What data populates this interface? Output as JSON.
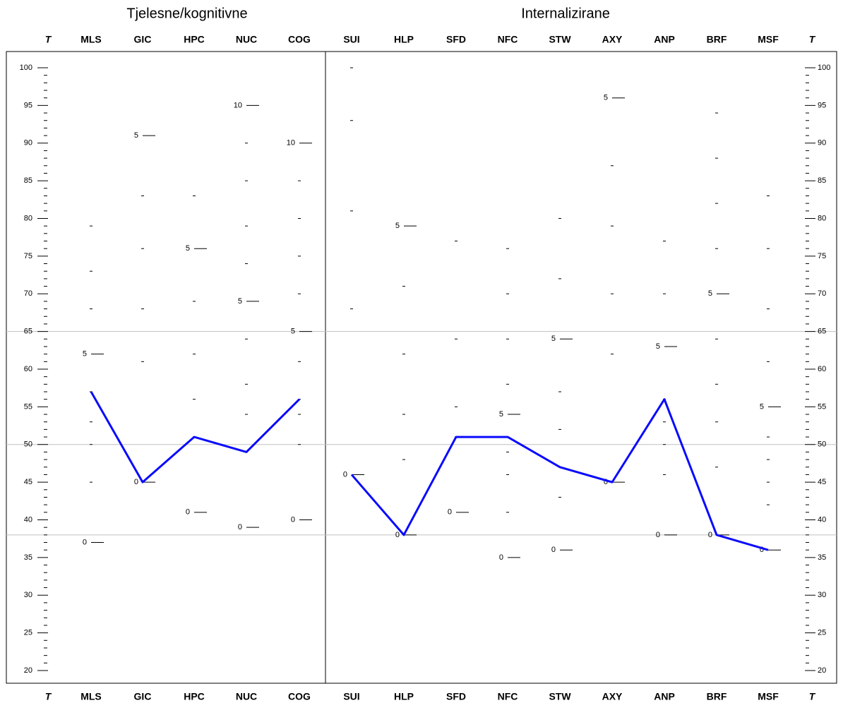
{
  "chart_data": {
    "type": "profile",
    "axis_label": "T",
    "ylim": [
      20,
      100
    ],
    "yticks": [
      20,
      25,
      30,
      35,
      40,
      45,
      50,
      55,
      60,
      65,
      70,
      75,
      80,
      85,
      90,
      95,
      100
    ],
    "yminorticks": [
      21,
      22,
      23,
      24,
      26,
      27,
      28,
      29,
      31,
      32,
      33,
      34,
      36,
      37,
      38,
      39,
      41,
      42,
      43,
      44,
      46,
      47,
      48,
      49,
      51,
      52,
      53,
      54,
      56,
      57,
      58,
      59,
      61,
      62,
      63,
      64,
      66,
      67,
      68,
      69,
      71,
      72,
      73,
      74,
      76,
      77,
      78,
      79,
      81,
      82,
      83,
      84,
      86,
      87,
      88,
      89,
      91,
      92,
      93,
      94,
      96,
      97,
      98,
      99
    ],
    "reference_lines": [
      65,
      50,
      38
    ],
    "color": "#0a0aff",
    "groups": [
      {
        "title": "Tjelesne/kognitivne",
        "categories": [
          "MLS",
          "GIC",
          "HPC",
          "NUC",
          "COG"
        ],
        "values": [
          57,
          45,
          51,
          49,
          56
        ],
        "raw_ticks": [
          [
            {
              "value": 37,
              "label": "0"
            },
            45,
            50,
            53,
            57,
            {
              "value": 62,
              "label": "5"
            },
            68,
            73,
            79
          ],
          [
            {
              "value": 45,
              "label": "0"
            },
            61,
            68,
            76,
            83,
            {
              "value": 91,
              "label": "5"
            }
          ],
          [
            {
              "value": 41,
              "label": "0"
            },
            51,
            56,
            62,
            69,
            {
              "value": 76,
              "label": "5"
            },
            83
          ],
          [
            {
              "value": 39,
              "label": "0"
            },
            49,
            54,
            58,
            64,
            {
              "value": 69,
              "label": "5"
            },
            74,
            79,
            85,
            90,
            {
              "value": 95,
              "label": "10"
            }
          ],
          [
            {
              "value": 40,
              "label": "0"
            },
            50,
            54,
            56,
            61,
            {
              "value": 65,
              "label": "5"
            },
            70,
            75,
            80,
            85,
            {
              "value": 90,
              "label": "10"
            }
          ]
        ]
      },
      {
        "title": "Internalizirane",
        "categories": [
          "SUI",
          "HLP",
          "SFD",
          "NFC",
          "STW",
          "AXY",
          "ANP",
          "BRF",
          "MSF"
        ],
        "values": [
          46,
          38,
          51,
          51,
          47,
          45,
          56,
          38,
          36
        ],
        "raw_ticks": [
          [
            {
              "value": 46,
              "label": "0"
            },
            68,
            81,
            93,
            100
          ],
          [
            {
              "value": 38,
              "label": "0"
            },
            48,
            54,
            62,
            71,
            {
              "value": 79,
              "label": "5"
            }
          ],
          [
            {
              "value": 41,
              "label": "0"
            },
            51,
            55,
            64,
            77
          ],
          [
            {
              "value": 35,
              "label": "0"
            },
            41,
            46,
            49,
            51,
            {
              "value": 54,
              "label": "5"
            },
            58,
            64,
            70,
            76
          ],
          [
            {
              "value": 36,
              "label": "0"
            },
            43,
            47,
            52,
            57,
            {
              "value": 64,
              "label": "5"
            },
            72,
            80
          ],
          [
            {
              "value": 45,
              "label": "0"
            },
            62,
            70,
            79,
            87,
            {
              "value": 96,
              "label": "5"
            }
          ],
          [
            {
              "value": 38,
              "label": "0"
            },
            46,
            50,
            53,
            56,
            {
              "value": 63,
              "label": "5"
            },
            70,
            77
          ],
          [
            {
              "value": 38,
              "label": "0"
            },
            47,
            53,
            58,
            64,
            {
              "value": 70,
              "label": "5"
            },
            76,
            82,
            88,
            94
          ],
          [
            {
              "value": 36,
              "label": "0"
            },
            42,
            45,
            48,
            51,
            {
              "value": 55,
              "label": "5"
            },
            61,
            68,
            76,
            83
          ]
        ]
      }
    ]
  }
}
